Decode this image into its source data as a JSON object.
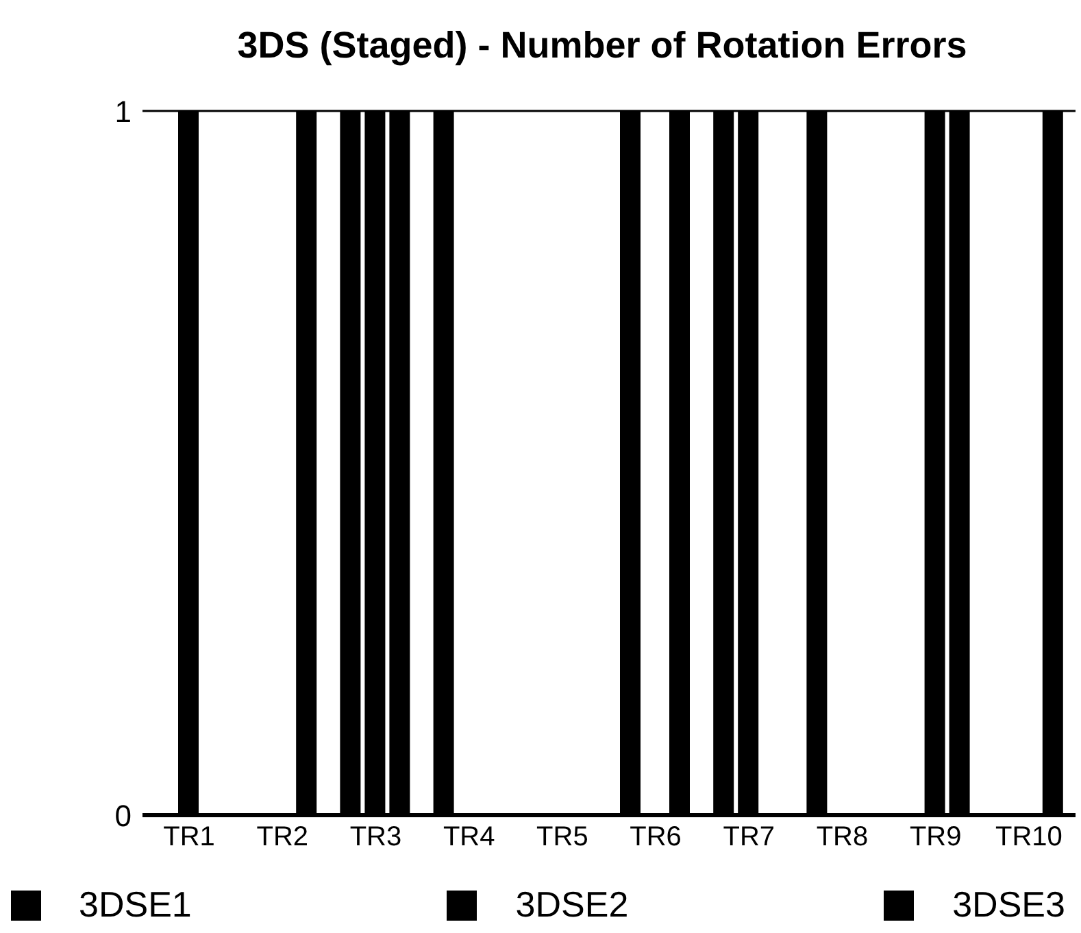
{
  "chart_data": {
    "type": "bar",
    "title": "3DS (Staged) - Number of Rotation Errors",
    "categories": [
      "TR1",
      "TR2",
      "TR3",
      "TR4",
      "TR5",
      "TR6",
      "TR7",
      "TR8",
      "TR9",
      "TR10"
    ],
    "series": [
      {
        "name": "3DSE1",
        "color": "#000000",
        "values": [
          0,
          0,
          1,
          1,
          0,
          1,
          1,
          1,
          0,
          0
        ]
      },
      {
        "name": "3DSE2",
        "color": "#000000",
        "values": [
          1,
          0,
          1,
          0,
          0,
          0,
          1,
          0,
          1,
          0
        ]
      },
      {
        "name": "3DSE3",
        "color": "#000000",
        "values": [
          0,
          1,
          1,
          0,
          0,
          1,
          0,
          0,
          1,
          1
        ]
      }
    ],
    "ylim": [
      0,
      1
    ],
    "yticks": [
      0,
      1
    ],
    "legend": "bottom"
  }
}
